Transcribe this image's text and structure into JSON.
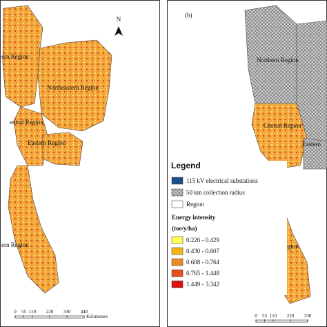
{
  "left_panel": {
    "north_arrow": "N",
    "regions": [
      "ern Region",
      "Northeastern Region",
      "entral Region",
      "Eastern Region",
      "ern Region"
    ],
    "scale_bar": {
      "ticks": [
        0,
        55,
        110,
        220,
        330,
        440
      ],
      "unit": "Kilometers"
    }
  },
  "right_panel": {
    "label": "(b)",
    "regions": [
      "Northern Region",
      "Central Region",
      "Eastern",
      "Southern Region"
    ],
    "scale_bar": {
      "ticks": [
        0,
        55,
        110,
        220,
        330
      ]
    }
  },
  "legend": {
    "title": "Legend",
    "items": [
      "115 kV electrical substations",
      "50 km collection radius",
      "Region"
    ],
    "energy_intensity": {
      "title": "Energy intensity",
      "unit": "(toe/y/ha)",
      "classes": [
        {
          "label": "0.226 - 0.429",
          "color": "#ffff55"
        },
        {
          "label": "0.430 - 0.607",
          "color": "#f5b514"
        },
        {
          "label": "0.608 - 0.764",
          "color": "#ee8a22"
        },
        {
          "label": "0.765 - 1.448",
          "color": "#e5501c"
        },
        {
          "label": "1.449 - 3.342",
          "color": "#dd1111"
        }
      ]
    }
  }
}
